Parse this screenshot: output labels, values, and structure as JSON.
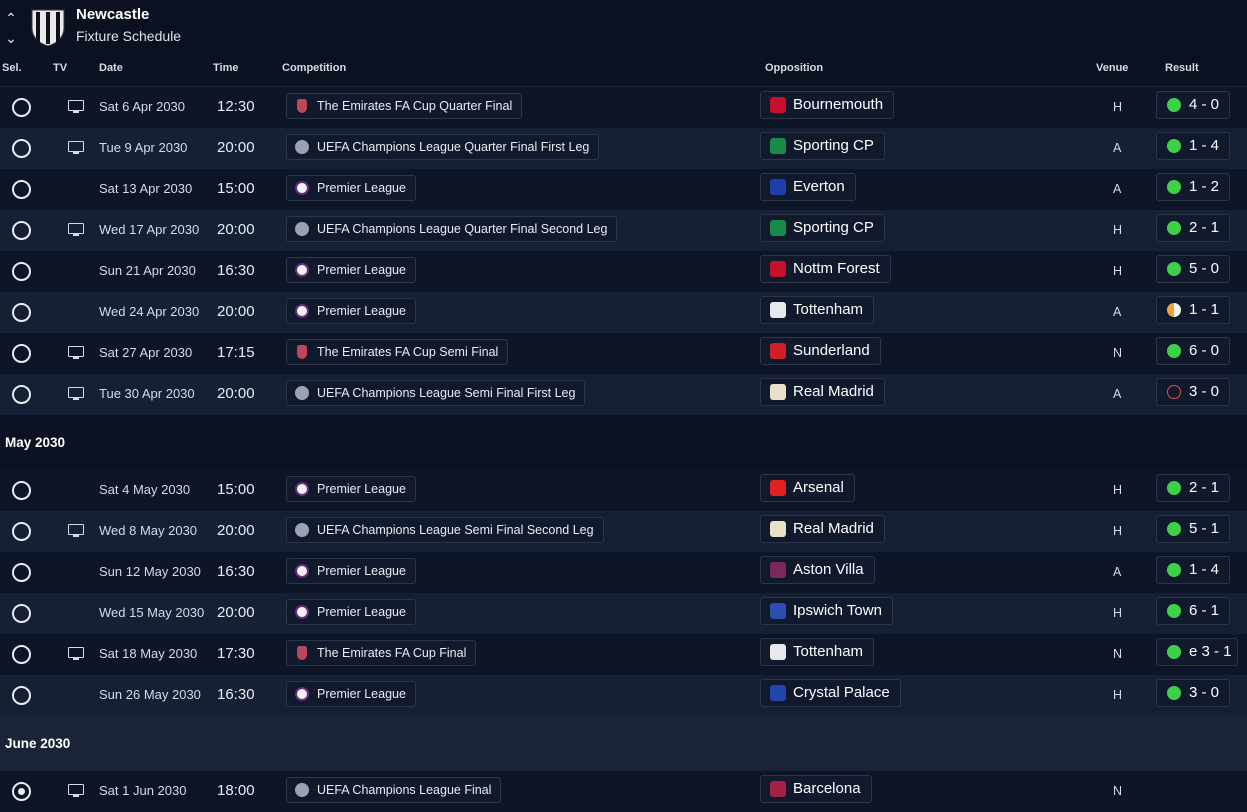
{
  "header": {
    "team": "Newcastle",
    "subtitle": "Fixture Schedule"
  },
  "columns": {
    "sel": "Sel.",
    "tv": "TV",
    "date": "Date",
    "time": "Time",
    "competition": "Competition",
    "opposition": "Opposition",
    "venue": "Venue",
    "result": "Result"
  },
  "groups": [
    {
      "month": "",
      "rows": [
        {
          "tv": true,
          "date": "Sat 6 Apr 2030",
          "time": "12:30",
          "comp": "The Emirates FA Cup Quarter Final",
          "ctype": "fa",
          "opp": "Bournemouth",
          "oppColor": "#c8102e",
          "venue": "H",
          "outcome": "win",
          "score": "4 - 0"
        },
        {
          "tv": true,
          "date": "Tue 9 Apr 2030",
          "time": "20:00",
          "comp": "UEFA Champions League Quarter Final First Leg",
          "ctype": "ucl",
          "opp": "Sporting CP",
          "oppColor": "#1a8a4a",
          "venue": "A",
          "outcome": "win",
          "score": "1 - 4"
        },
        {
          "tv": false,
          "date": "Sat 13 Apr 2030",
          "time": "15:00",
          "comp": "Premier League",
          "ctype": "pl",
          "opp": "Everton",
          "oppColor": "#1d3fa8",
          "venue": "A",
          "outcome": "win",
          "score": "1 - 2"
        },
        {
          "tv": true,
          "date": "Wed 17 Apr 2030",
          "time": "20:00",
          "comp": "UEFA Champions League Quarter Final Second Leg",
          "ctype": "ucl",
          "opp": "Sporting CP",
          "oppColor": "#1a8a4a",
          "venue": "H",
          "outcome": "win",
          "score": "2 - 1"
        },
        {
          "tv": false,
          "date": "Sun 21 Apr 2030",
          "time": "16:30",
          "comp": "Premier League",
          "ctype": "pl",
          "opp": "Nottm Forest",
          "oppColor": "#c8102e",
          "venue": "H",
          "outcome": "win",
          "score": "5 - 0"
        },
        {
          "tv": false,
          "date": "Wed 24 Apr 2030",
          "time": "20:00",
          "comp": "Premier League",
          "ctype": "pl",
          "opp": "Tottenham",
          "oppColor": "#e8e8ee",
          "venue": "A",
          "outcome": "draw",
          "score": "1 - 1"
        },
        {
          "tv": true,
          "date": "Sat 27 Apr 2030",
          "time": "17:15",
          "comp": "The Emirates FA Cup Semi Final",
          "ctype": "fa",
          "opp": "Sunderland",
          "oppColor": "#d11f2a",
          "venue": "N",
          "outcome": "win",
          "score": "6 - 0"
        },
        {
          "tv": true,
          "date": "Tue 30 Apr 2030",
          "time": "20:00",
          "comp": "UEFA Champions League Semi Final First Leg",
          "ctype": "ucl",
          "opp": "Real Madrid",
          "oppColor": "#e8e0c8",
          "venue": "A",
          "outcome": "loss",
          "score": "3 - 0"
        }
      ]
    },
    {
      "month": "May 2030",
      "rows": [
        {
          "tv": false,
          "date": "Sat 4 May 2030",
          "time": "15:00",
          "comp": "Premier League",
          "ctype": "pl",
          "opp": "Arsenal",
          "oppColor": "#e01f1f",
          "venue": "H",
          "outcome": "win",
          "score": "2 - 1"
        },
        {
          "tv": true,
          "date": "Wed 8 May 2030",
          "time": "20:00",
          "comp": "UEFA Champions League Semi Final Second Leg",
          "ctype": "ucl",
          "opp": "Real Madrid",
          "oppColor": "#e8e0c8",
          "venue": "H",
          "outcome": "win",
          "score": "5 - 1"
        },
        {
          "tv": false,
          "date": "Sun 12 May 2030",
          "time": "16:30",
          "comp": "Premier League",
          "ctype": "pl",
          "opp": "Aston Villa",
          "oppColor": "#7a2a5a",
          "venue": "A",
          "outcome": "win",
          "score": "1 - 4"
        },
        {
          "tv": false,
          "date": "Wed 15 May 2030",
          "time": "20:00",
          "comp": "Premier League",
          "ctype": "pl",
          "opp": "Ipswich Town",
          "oppColor": "#2a4fb0",
          "venue": "H",
          "outcome": "win",
          "score": "6 - 1"
        },
        {
          "tv": true,
          "date": "Sat 18 May 2030",
          "time": "17:30",
          "comp": "The Emirates FA Cup Final",
          "ctype": "fa",
          "opp": "Tottenham",
          "oppColor": "#e8e8ee",
          "venue": "N",
          "outcome": "win",
          "score": "e 3 - 1"
        },
        {
          "tv": false,
          "date": "Sun 26 May 2030",
          "time": "16:30",
          "comp": "Premier League",
          "ctype": "pl",
          "opp": "Crystal Palace",
          "oppColor": "#1f47a8",
          "venue": "H",
          "outcome": "win",
          "score": "3 - 0"
        }
      ]
    },
    {
      "month": "June 2030",
      "rows": [
        {
          "tv": true,
          "selected": true,
          "date": "Sat 1 Jun 2030",
          "time": "18:00",
          "comp": "UEFA Champions League Final",
          "ctype": "ucl",
          "opp": "Barcelona",
          "oppColor": "#a52046",
          "venue": "N",
          "outcome": "",
          "score": ""
        }
      ]
    }
  ]
}
